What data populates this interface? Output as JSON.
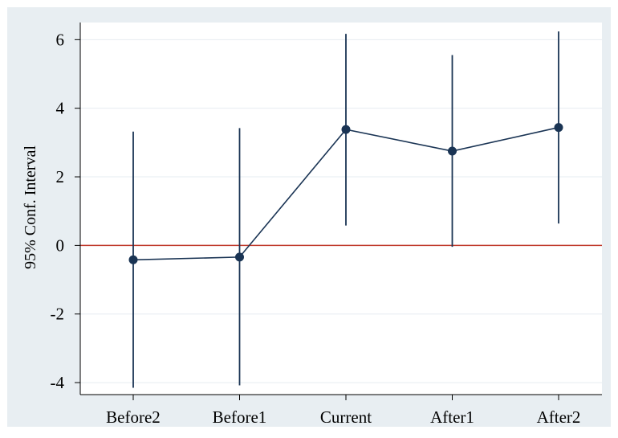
{
  "chart_data": {
    "type": "scatter",
    "title": "",
    "xlabel": "",
    "ylabel": "95% Conf. Interval",
    "categories": [
      "Before2",
      "Before1",
      "Current",
      "After1",
      "After2"
    ],
    "series": [
      {
        "estimate": [
          -0.42,
          -0.34,
          3.38,
          2.75,
          3.44
        ],
        "ci_lower": [
          -4.15,
          -4.08,
          0.58,
          -0.04,
          0.64
        ],
        "ci_upper": [
          3.32,
          3.42,
          6.17,
          5.55,
          6.24
        ]
      }
    ],
    "connected_line": true,
    "reference_line": {
      "y": 0,
      "color": "#c0392b"
    },
    "ylim": [
      -4.35,
      6.5
    ],
    "yticks": [
      -4,
      -2,
      0,
      2,
      4,
      6
    ],
    "ytick_labels": [
      "-4",
      "-2",
      "0",
      "2",
      "4",
      "6"
    ],
    "grid": "horizontal",
    "legend": "none",
    "colors": {
      "outer_background": "#e8eef2",
      "plot_background": "#ffffff",
      "marker": "#1a3454",
      "ci_line": "#1a3454",
      "gridline": "#e6ecf0"
    }
  }
}
